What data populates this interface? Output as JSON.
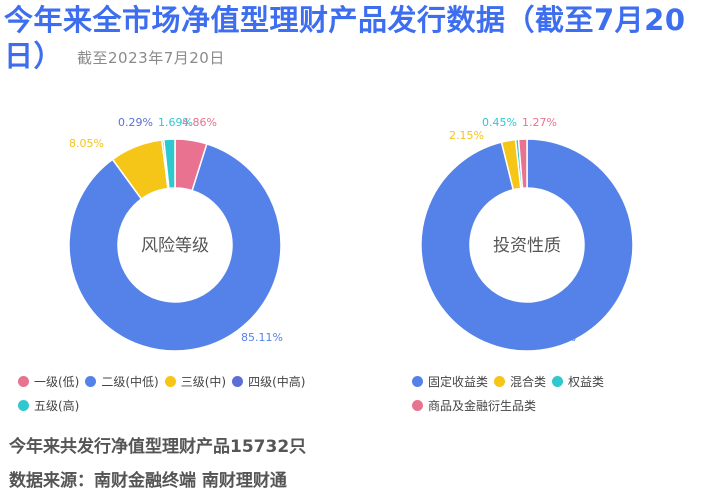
{
  "title": {
    "main": "今年来全市场净值型理财产品发行数据（截至7月20日）",
    "sub": "截至2023年7月20日"
  },
  "chart_data": [
    {
      "type": "pie",
      "center_label": "风险等级",
      "categories": [
        "一级(低)",
        "二级(中低)",
        "三级(中)",
        "四级(中高)",
        "五级(高)"
      ],
      "values": [
        4.86,
        85.11,
        8.05,
        0.29,
        1.69
      ],
      "value_labels": [
        "4.86%",
        "85.11%",
        "8.05%",
        "0.29%",
        "1.69%"
      ],
      "colors": [
        "#e8728f",
        "#5582e8",
        "#f5c518",
        "#5b6fd6",
        "#2ec8cf"
      ]
    },
    {
      "type": "pie",
      "center_label": "投资性质",
      "categories": [
        "固定收益类",
        "混合类",
        "权益类",
        "商品及金融衍生品类"
      ],
      "values": [
        96.12,
        2.15,
        0.45,
        1.27
      ],
      "value_labels": [
        "96.12%",
        "2.15%",
        "0.45%",
        "1.27%"
      ],
      "colors": [
        "#5582e8",
        "#f5c518",
        "#2ec8cf",
        "#e8728f"
      ]
    }
  ],
  "footer": {
    "total": "今年来共发行净值型理财产品15732只",
    "source": "数据来源：南财金融终端 南财理财通"
  }
}
